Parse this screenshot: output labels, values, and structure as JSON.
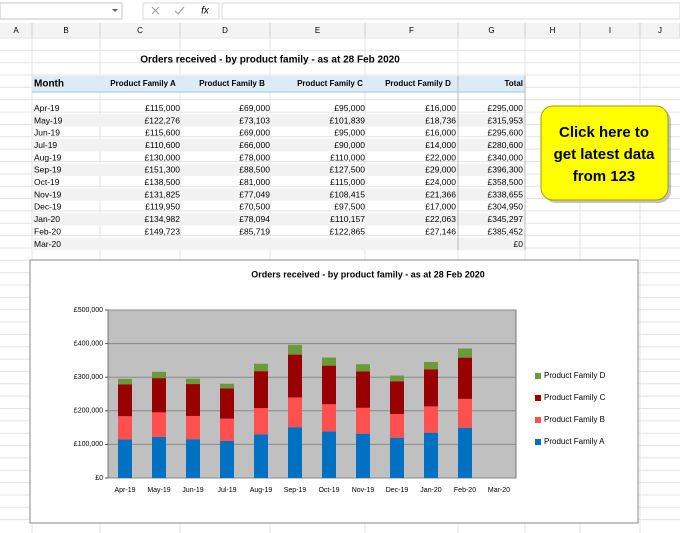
{
  "formula_bar": {
    "function_icon": "fx"
  },
  "columns": [
    "A",
    "B",
    "C",
    "D",
    "E",
    "F",
    "G",
    "H",
    "I",
    "J"
  ],
  "sheet": {
    "title": "Orders received - by product family - as at 28 Feb 2020",
    "headers": [
      "Month",
      "Product Family A",
      "Product Family B",
      "Product Family C",
      "Product Family D",
      "Total"
    ],
    "rows": [
      [
        "Apr-19",
        "£115,000",
        "£69,000",
        "£95,000",
        "£16,000",
        "£295,000"
      ],
      [
        "May-19",
        "£122,276",
        "£73,103",
        "£101,839",
        "£18,736",
        "£315,953"
      ],
      [
        "Jun-19",
        "£115,600",
        "£69,000",
        "£95,000",
        "£16,000",
        "£295,600"
      ],
      [
        "Jul-19",
        "£110,600",
        "£66,000",
        "£90,000",
        "£14,000",
        "£280,600"
      ],
      [
        "Aug-19",
        "£130,000",
        "£78,000",
        "£110,000",
        "£22,000",
        "£340,000"
      ],
      [
        "Sep-19",
        "£151,300",
        "£88,500",
        "£127,500",
        "£29,000",
        "£396,300"
      ],
      [
        "Oct-19",
        "£138,500",
        "£81,000",
        "£115,000",
        "£24,000",
        "£358,500"
      ],
      [
        "Nov-19",
        "£131,825",
        "£77,049",
        "£108,415",
        "£21,366",
        "£338,655"
      ],
      [
        "Dec-19",
        "£119,950",
        "£70,500",
        "£97,500",
        "£17,000",
        "£304,950"
      ],
      [
        "Jan-20",
        "£134,982",
        "£78,094",
        "£110,157",
        "£22,063",
        "£345,297"
      ],
      [
        "Feb-20",
        "£149,723",
        "£85,719",
        "£122,865",
        "£27,146",
        "£385,452"
      ],
      [
        "Mar-20",
        null,
        null,
        null,
        null,
        "£0"
      ]
    ]
  },
  "button": {
    "lines": [
      "Click here to",
      "get latest data",
      "from 123"
    ]
  },
  "chart_data": {
    "type": "bar",
    "stacked": true,
    "title": "Orders received - by product family  - as at 28 Feb 2020",
    "categories": [
      "Apr-19",
      "May-19",
      "Jun-19",
      "Jul-19",
      "Aug-19",
      "Sep-19",
      "Oct-19",
      "Nov-19",
      "Dec-19",
      "Jan-20",
      "Feb-20",
      "Mar-20"
    ],
    "series": [
      {
        "name": "Product Family A",
        "color": "#0070c0",
        "values": [
          115000,
          122276,
          115600,
          110600,
          130000,
          151300,
          138500,
          131825,
          119950,
          134982,
          149723,
          null
        ]
      },
      {
        "name": "Product Family B",
        "color": "#ff5050",
        "values": [
          69000,
          73103,
          69000,
          66000,
          78000,
          88500,
          81000,
          77049,
          70500,
          78094,
          85719,
          null
        ]
      },
      {
        "name": "Product Family C",
        "color": "#990000",
        "values": [
          95000,
          101839,
          95000,
          90000,
          110000,
          127500,
          115000,
          108415,
          97500,
          110157,
          122865,
          null
        ]
      },
      {
        "name": "Product Family D",
        "color": "#6b9a3a",
        "values": [
          16000,
          18736,
          16000,
          14000,
          22000,
          29000,
          24000,
          21366,
          17000,
          22063,
          27146,
          null
        ]
      }
    ],
    "ylim": [
      0,
      500000
    ],
    "yticks": [
      {
        "value": 0,
        "label": "£0"
      },
      {
        "value": 100000,
        "label": "£100,000"
      },
      {
        "value": 200000,
        "label": "£200,000"
      },
      {
        "value": 300000,
        "label": "£300,000"
      },
      {
        "value": 400000,
        "label": "£400,000"
      },
      {
        "value": 500000,
        "label": "£500,000"
      }
    ],
    "grid": true,
    "legend": "right",
    "plot_background": "#c0c0c0"
  }
}
